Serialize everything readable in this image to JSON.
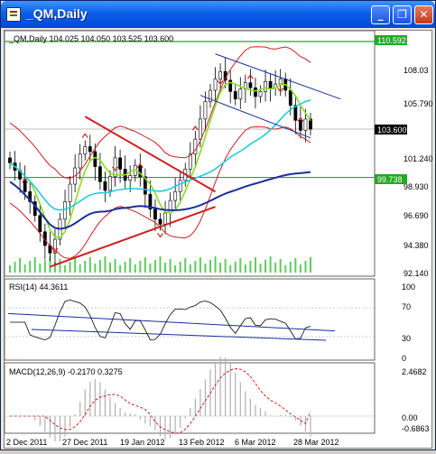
{
  "window": {
    "title": "_QM,Daily",
    "minimize_glyph": "_",
    "restore_glyph": "❐",
    "close_glyph": "✕"
  },
  "main_panel": {
    "header": "_QM,Daily  104.025 104.050 103.525 103.600",
    "price_labels": [
      "110.592",
      "108.03",
      "105.790",
      "103.600",
      "101.240",
      "99.738",
      "98.930",
      "96.690",
      "94.380",
      "92.140"
    ],
    "highlight_labels": {
      "upper": "110.592",
      "current": "103.600",
      "lower": "99.738"
    }
  },
  "rsi_panel": {
    "header": "RSI(14) 44.3611",
    "levels": [
      "100",
      "70",
      "30",
      "0"
    ]
  },
  "macd_panel": {
    "header": "MACD(12,26,9) -0.2170 0.3275",
    "levels": [
      "2.4682",
      "0.00",
      "-0.6863"
    ]
  },
  "time_axis": {
    "labels": [
      "2 Dec 2011",
      "27 Dec 2011",
      "19 Jan 2012",
      "13 Feb 2012",
      "6 Mar 2012",
      "28 Mar 2012"
    ]
  },
  "colors": {
    "hline_green": "#22aa22",
    "current_hline": "#7f7f7f",
    "bollinger": "#cc2020",
    "ma_fast": "#88dd22",
    "ma_mid": "#22ccdd",
    "ma_slow": "#1a2f9a",
    "trendline": "#cc2020",
    "channel": "#1a2f9a",
    "volume": "#5fcc5f",
    "fractal": "#cc2020",
    "rsi_line": "#000000",
    "macd_hist": "#b0b0b0",
    "macd_signal": "#cc2020"
  },
  "chart_data": {
    "type": "candlestick",
    "symbol": "_QM",
    "timeframe": "Daily",
    "last_ohlc": {
      "open": 104.025,
      "high": 104.05,
      "low": 103.525,
      "close": 103.6
    },
    "close_series": [
      100.9,
      100.3,
      99.6,
      98.6,
      97.8,
      96.7,
      95.4,
      94.3,
      93.7,
      94.8,
      96.4,
      97.8,
      99.2,
      100.5,
      101.6,
      102.2,
      101.8,
      100.6,
      99.4,
      98.7,
      99.8,
      101.3,
      100.4,
      99.5,
      99.9,
      100.7,
      99.8,
      98.4,
      97.2,
      96.4,
      96.0,
      96.9,
      97.9,
      98.6,
      99.5,
      100.4,
      101.6,
      102.8,
      104.4,
      105.8,
      106.7,
      107.6,
      108.2,
      107.5,
      106.6,
      106.0,
      106.8,
      107.3,
      106.9,
      106.2,
      106.6,
      107.4,
      106.9,
      107.2,
      107.6,
      106.7,
      105.5,
      104.3,
      103.5,
      104.4,
      103.6
    ],
    "price_axis_min": 92.14,
    "price_axis_max": 110.592,
    "rsi_value": 44.3611,
    "macd": {
      "main": -0.217,
      "signal": 0.3275
    }
  }
}
